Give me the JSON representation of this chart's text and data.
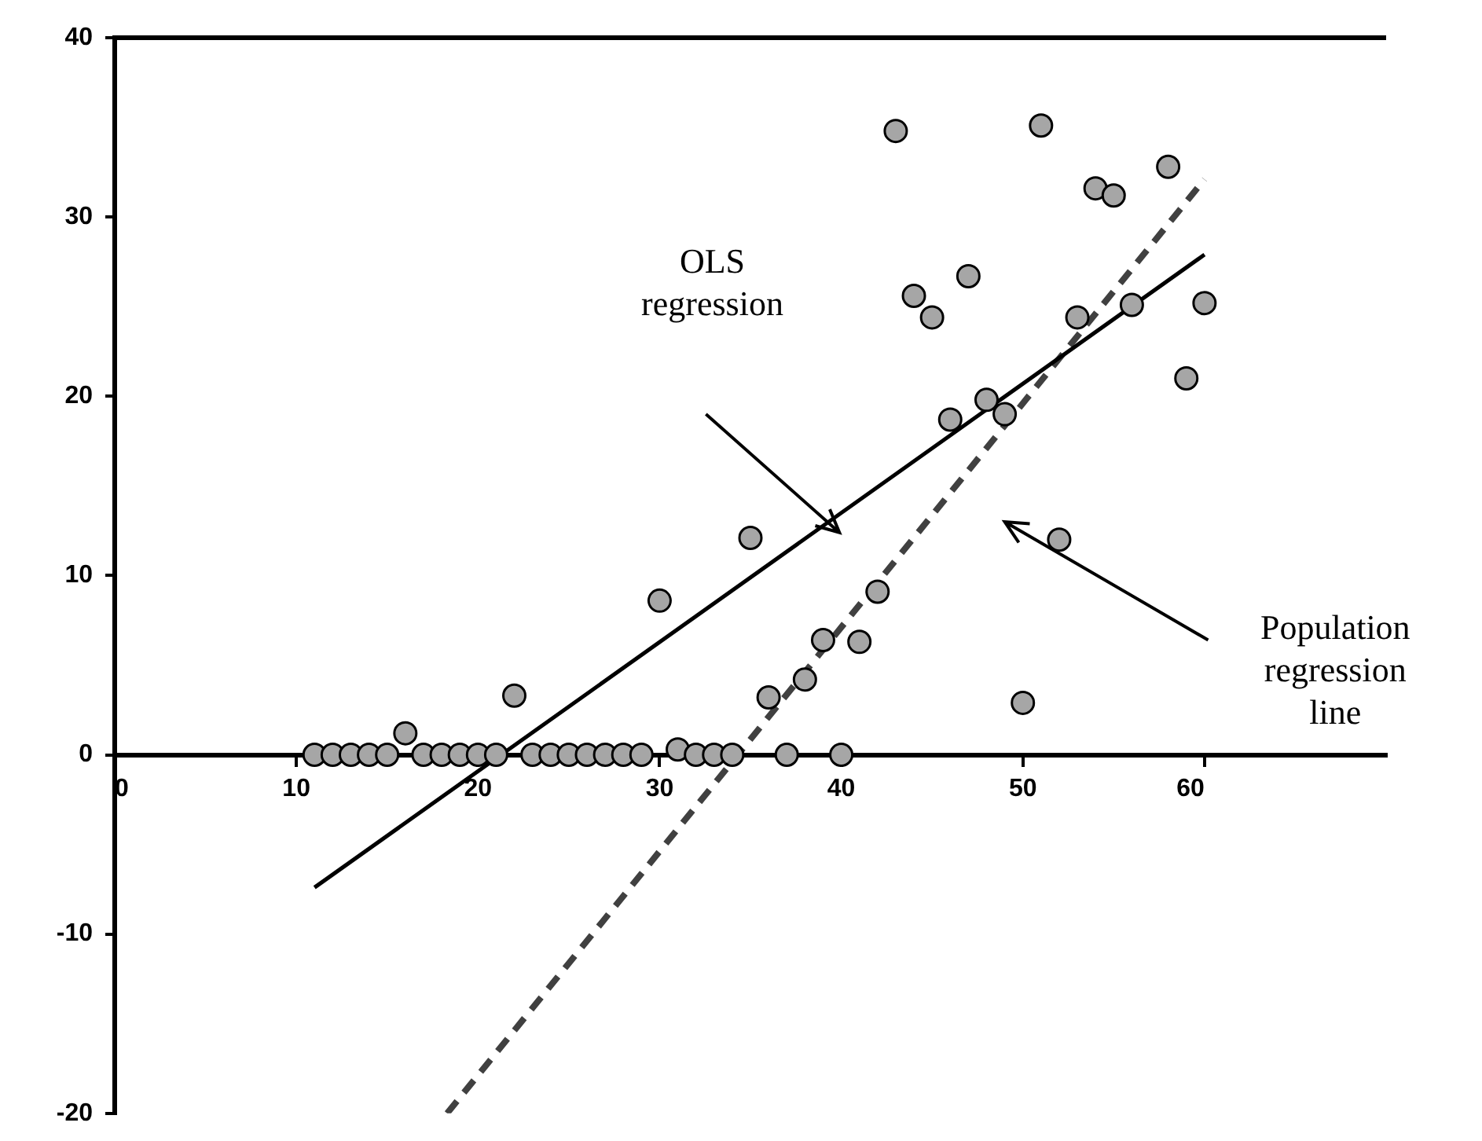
{
  "chart_data": {
    "type": "scatter",
    "xlim": [
      0,
      70
    ],
    "xticks": [
      0,
      10,
      20,
      30,
      40,
      50,
      60
    ],
    "ylim": [
      -20,
      40
    ],
    "yticks": [
      -20,
      -10,
      0,
      10,
      20,
      30,
      40
    ],
    "grid": false,
    "legend": false,
    "series": [
      {
        "color": "#a6a6a6",
        "marker": "circle",
        "x": [
          11,
          12,
          13,
          14,
          15,
          16,
          17,
          18,
          19,
          20,
          21,
          22,
          23,
          24,
          25,
          26,
          27,
          28,
          29,
          30,
          31,
          32,
          33,
          34,
          35,
          36,
          37,
          38,
          39,
          40,
          41,
          42,
          43,
          44,
          45,
          46,
          47,
          48,
          49,
          50,
          51,
          52,
          53,
          54,
          55,
          56,
          58,
          59,
          60
        ],
        "values": [
          0,
          0,
          0,
          0,
          0,
          1.2,
          0,
          0,
          0,
          0,
          0,
          3.3,
          0,
          0,
          0,
          0,
          0,
          0,
          0,
          8.6,
          0.3,
          0,
          0,
          0,
          12.1,
          3.2,
          0,
          4.2,
          6.4,
          0,
          6.3,
          9.1,
          34.8,
          25.6,
          24.4,
          18.7,
          26.7,
          19.8,
          19.0,
          2.9,
          35.1,
          12.0,
          24.4,
          31.6,
          31.2,
          25.1,
          32.8,
          21.0,
          25.2
        ]
      },
      {
        "type": "line",
        "color": "#000000",
        "marker": "none",
        "line_style": "solid",
        "x": [
          11,
          60
        ],
        "values": [
          -7.4,
          27.9
        ]
      },
      {
        "type": "line",
        "color": "#404040",
        "marker": "none",
        "line_style": "dashed",
        "x": [
          18.3,
          60
        ],
        "values": [
          -20,
          32.1
        ]
      }
    ],
    "annotations": [
      "OLS\nregression",
      "Population\nregression\nline"
    ]
  }
}
